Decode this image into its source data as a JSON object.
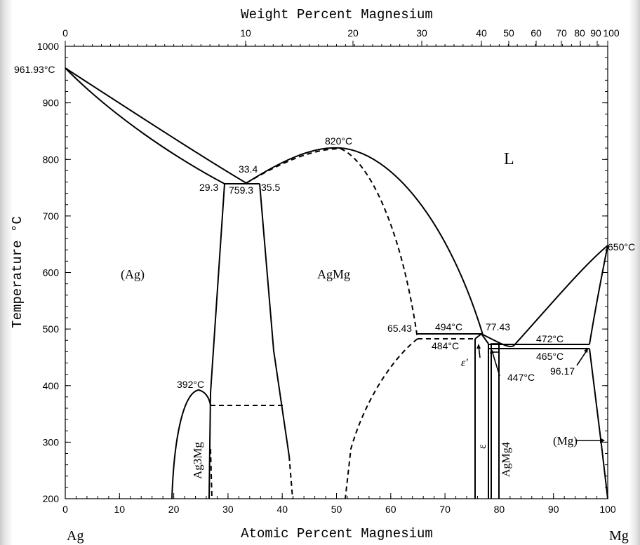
{
  "axes": {
    "top_title": "Weight Percent Magnesium",
    "bottom_title": "Atomic Percent Magnesium",
    "left_title": "Temperature °C",
    "left_element": "Ag",
    "right_element": "Mg",
    "y_ticks": [
      "1000",
      "900",
      "800",
      "700",
      "600",
      "500",
      "400",
      "300",
      "200"
    ],
    "x_ticks": [
      "0",
      "10",
      "20",
      "30",
      "40",
      "50",
      "60",
      "70",
      "80",
      "90",
      "100"
    ],
    "top_ticks": [
      "0",
      "10",
      "20",
      "30",
      "40",
      "50",
      "60",
      "70",
      "80",
      "90",
      "100"
    ]
  },
  "phase_labels": {
    "liquid": "L",
    "ag_solid": "(Ag)",
    "agmg": "AgMg",
    "ag3mg": "Ag3Mg",
    "epsilon": "ε",
    "epsilon_prime": "ε′",
    "agmg4": "AgMg4",
    "mg_solid": "(Mg)"
  },
  "annotations": {
    "ag_melt": "961.93°C",
    "agmg_max": "820°C",
    "eutectic_comp": "33.4",
    "eutectic_left": "29.3",
    "eutectic_temp": "759.3",
    "eutectic_right": "35.5",
    "mg_melt": "650°C",
    "ag3mg_max": "392°C",
    "peri_left": "65.43",
    "peri_temp": "494°C",
    "peri_right": "77.43",
    "peri_low": "484°C",
    "eut_mg_temp": "472°C",
    "eut_mg_low": "465°C",
    "eut_mg_comp": "96.17",
    "low_temp": "447°C"
  }
}
